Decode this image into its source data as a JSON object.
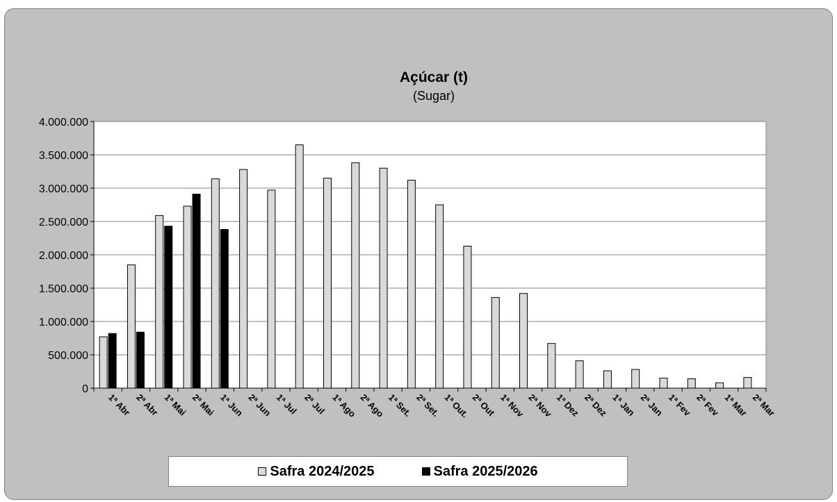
{
  "chart_data": {
    "type": "bar",
    "title": "Açúcar (t)",
    "subtitle": "(Sugar)",
    "xlabel": "",
    "ylabel": "",
    "ylim": [
      0,
      4000000
    ],
    "yticks": [
      0,
      500000,
      1000000,
      1500000,
      2000000,
      2500000,
      3000000,
      3500000,
      4000000
    ],
    "ytick_labels": [
      "0",
      "500.000",
      "1.000.000",
      "1.500.000",
      "2.000.000",
      "2.500.000",
      "3.000.000",
      "3.500.000",
      "4.000.000"
    ],
    "grid": true,
    "legend_position": "bottom",
    "categories": [
      "1ª Abr",
      "2ª Abr",
      "1ª Mai",
      "2ª Mai",
      "1ª Jun",
      "2ª Jun",
      "1ª Jul",
      "2ª Jul",
      "1ª Ago",
      "2ª Ago",
      "1ª Set.",
      "2ª Set.",
      "1ª Out.",
      "2ª Out",
      "1ª Nov",
      "2ª Nov",
      "1ª Dez",
      "2ª Dez",
      "1ª Jan",
      "2ª Jan",
      "1ª Fev",
      "2ª Fev",
      "1ª Mar",
      "2ª Mar"
    ],
    "series": [
      {
        "name": "Safra 2024/2025",
        "color": "#d9d9d9",
        "values": [
          770000,
          1850000,
          2590000,
          2730000,
          3140000,
          3280000,
          2970000,
          3650000,
          3150000,
          3380000,
          3300000,
          3120000,
          2750000,
          2130000,
          1360000,
          1420000,
          670000,
          410000,
          260000,
          280000,
          150000,
          140000,
          80000,
          160000
        ]
      },
      {
        "name": "Safra 2025/2026",
        "color": "#000000",
        "values": [
          820000,
          840000,
          2430000,
          2910000,
          2380000,
          null,
          null,
          null,
          null,
          null,
          null,
          null,
          null,
          null,
          null,
          null,
          null,
          null,
          null,
          null,
          null,
          null,
          null,
          null
        ]
      }
    ]
  }
}
